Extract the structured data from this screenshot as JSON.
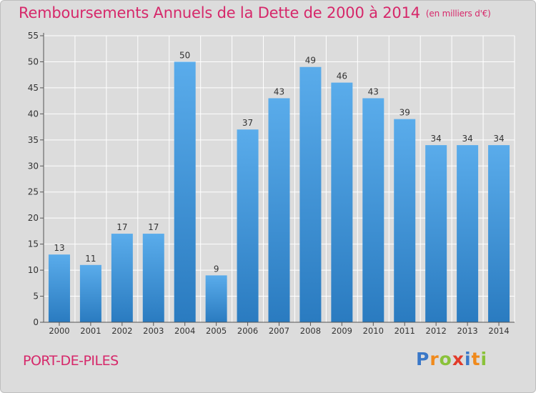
{
  "title": "Remboursements Annuels de la Dette de 2000 à 2014",
  "unit_note": "(en milliers d'€)",
  "commune": "PORT-DE-PILES",
  "logo": {
    "letters": [
      "P",
      "r",
      "o",
      "x",
      "i",
      "t",
      "i"
    ],
    "colors": [
      "#3a78c8",
      "#f08a1c",
      "#8ac23a",
      "#e23b2a",
      "#3a78c8",
      "#f08a1c",
      "#8ac23a"
    ]
  },
  "colors": {
    "title": "#d6286a",
    "bar_top": "#5aaceb",
    "bar_bottom": "#2a7bc0",
    "background": "#dcdcdc"
  },
  "chart_data": {
    "type": "bar",
    "title": "Remboursements Annuels de la Dette de 2000 à 2014",
    "categories": [
      "2000",
      "2001",
      "2002",
      "2003",
      "2004",
      "2005",
      "2006",
      "2007",
      "2008",
      "2009",
      "2010",
      "2011",
      "2012",
      "2013",
      "2014"
    ],
    "values": [
      13,
      11,
      17,
      17,
      50,
      9,
      37,
      43,
      49,
      46,
      43,
      39,
      34,
      34,
      34
    ],
    "ylim": [
      0,
      55
    ],
    "yticks": [
      0,
      5,
      10,
      15,
      20,
      25,
      30,
      35,
      40,
      45,
      50,
      55
    ],
    "grid": true,
    "data_labels": true
  }
}
